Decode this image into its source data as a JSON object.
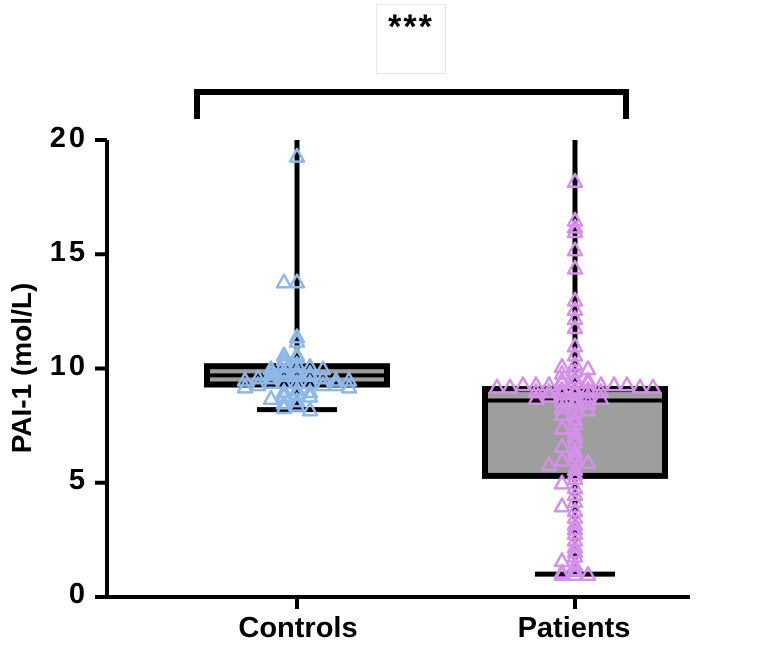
{
  "chart_data": {
    "type": "box",
    "title": "",
    "xlabel": "",
    "ylabel": "PAI-1 (mol/L)",
    "ylim": [
      0,
      20
    ],
    "yticks": [
      0,
      5,
      10,
      15,
      20
    ],
    "ytick_labels": [
      "0",
      "5",
      "10",
      "15",
      "20"
    ],
    "categories": [
      "Controls",
      "Patients"
    ],
    "significance": "***",
    "colors": {
      "Controls": "#8fb8ea",
      "Patients": "#d590ea",
      "box_fill": "#9e9e9e",
      "line": "#000000"
    },
    "series": [
      {
        "name": "Controls",
        "min": 8.2,
        "q1": 9.3,
        "median": 9.7,
        "q3": 10.1,
        "max": 20,
        "points": [
          19.3,
          13.8,
          13.8,
          11.4,
          11.2,
          10.6,
          10.6,
          10.5,
          10.4,
          10.2,
          10.2,
          10.1,
          10.0,
          10.0,
          9.9,
          9.9,
          9.8,
          9.8,
          9.7,
          9.7,
          9.7,
          9.6,
          9.6,
          9.6,
          9.5,
          9.5,
          9.5,
          9.4,
          9.4,
          9.4,
          9.4,
          9.3,
          9.3,
          9.3,
          9.2,
          9.2,
          9.1,
          9.0,
          9.0,
          8.9,
          8.8,
          8.8,
          8.7,
          8.6,
          8.5,
          8.4,
          8.3,
          8.2
        ]
      },
      {
        "name": "Patients",
        "min": 1.0,
        "q1": 5.3,
        "median": 8.6,
        "q3": 9.1,
        "max": 20,
        "points": [
          18.2,
          16.5,
          16.2,
          16.0,
          15.2,
          14.4,
          13.0,
          12.6,
          12.2,
          11.8,
          11.0,
          10.6,
          10.2,
          10.1,
          10.0,
          9.9,
          9.8,
          9.6,
          9.5,
          9.5,
          9.4,
          9.4,
          9.4,
          9.3,
          9.3,
          9.3,
          9.3,
          9.3,
          9.3,
          9.2,
          9.2,
          9.2,
          9.2,
          9.1,
          9.1,
          9.1,
          9.0,
          9.0,
          9.0,
          8.9,
          8.9,
          8.8,
          8.8,
          8.7,
          8.7,
          8.6,
          8.6,
          8.5,
          8.4,
          8.3,
          8.2,
          8.1,
          8.0,
          7.8,
          7.6,
          7.4,
          7.2,
          7.0,
          6.8,
          6.6,
          6.4,
          6.2,
          6.0,
          6.0,
          5.9,
          5.8,
          5.6,
          5.4,
          5.2,
          5.0,
          4.8,
          4.5,
          4.2,
          4.0,
          3.8,
          3.5,
          3.2,
          3.0,
          2.8,
          2.5,
          2.2,
          2.0,
          1.8,
          1.6,
          1.4,
          1.2,
          1.1,
          1.0,
          1.0,
          1.0
        ]
      }
    ]
  }
}
